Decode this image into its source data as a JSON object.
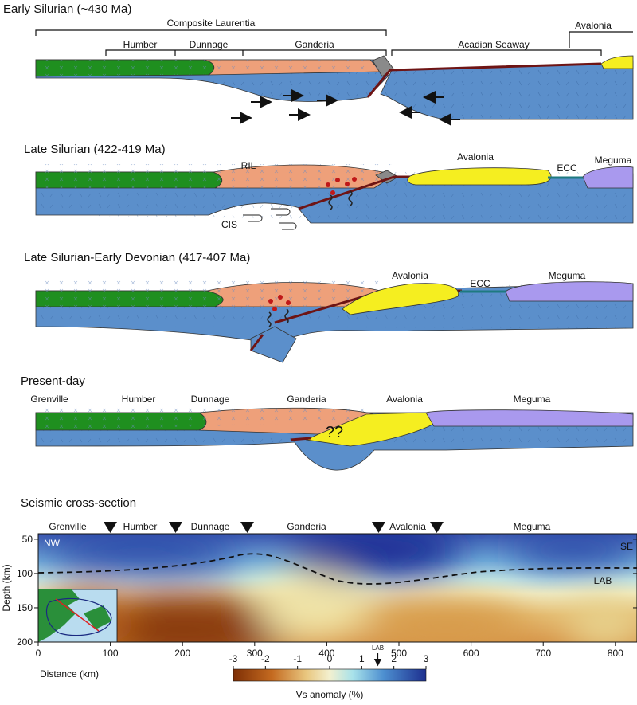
{
  "panels": [
    {
      "title": "Early Silurian (~430 Ma)",
      "labels": [
        "Composite Laurentia",
        "Humber",
        "Dunnage",
        "Ganderia",
        "Acadian Seaway",
        "Avalonia"
      ]
    },
    {
      "title": "Late Silurian (422-419 Ma)",
      "labels": [
        "RIL",
        "CIS",
        "Avalonia",
        "ECC",
        "Meguma"
      ]
    },
    {
      "title": "Late Silurian-Early Devonian (417-407 Ma)",
      "labels": [
        "Avalonia",
        "ECC",
        "Meguma"
      ]
    },
    {
      "title": "Present-day",
      "labels": [
        "Grenville",
        "Humber",
        "Dunnage",
        "Ganderia",
        "Avalonia",
        "Meguma",
        "??"
      ]
    }
  ],
  "seismic": {
    "title": "Seismic cross-section",
    "terranes": [
      "Grenville",
      "Humber",
      "Dunnage",
      "Ganderia",
      "Avalonia",
      "Meguma"
    ],
    "xlabel": "Distance (km)",
    "ylabel": "Depth (km)",
    "xlim": [
      0,
      830
    ],
    "ylim": [
      42,
      200
    ],
    "xticks": [
      0,
      100,
      200,
      300,
      400,
      500,
      600,
      700,
      800
    ],
    "yticks": [
      50,
      100,
      150,
      200
    ],
    "corner_labels": [
      "NW",
      "SE"
    ],
    "lab_label": "LAB",
    "colorbar": {
      "label": "Vs anomaly (%)",
      "lim": [
        -3,
        3
      ],
      "ticks": [
        -3,
        -2,
        -1,
        0,
        1,
        2,
        3
      ],
      "lab_marker": {
        "label": "LAB",
        "value": 1.5
      }
    }
  }
}
